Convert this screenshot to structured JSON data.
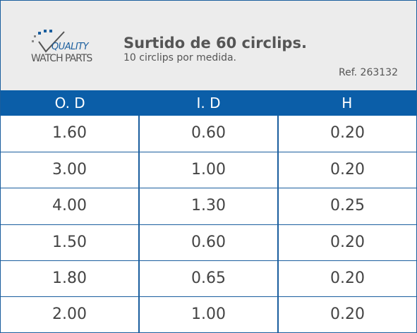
{
  "logo": {
    "line1": "QUALITY",
    "line2": "WATCH PARTS"
  },
  "header": {
    "title": "Surtido de 60 circlips.",
    "subtitle": "10 circlips por medida.",
    "ref": "Ref. 263132"
  },
  "table": {
    "columns": [
      "O. D",
      "I. D",
      "H"
    ],
    "rows": [
      [
        "1.60",
        "0.60",
        "0.20"
      ],
      [
        "3.00",
        "1.00",
        "0.20"
      ],
      [
        "4.00",
        "1.30",
        "0.25"
      ],
      [
        "1.50",
        "0.60",
        "0.20"
      ],
      [
        "1.80",
        "0.65",
        "0.20"
      ],
      [
        "2.00",
        "1.00",
        "0.20"
      ]
    ]
  }
}
